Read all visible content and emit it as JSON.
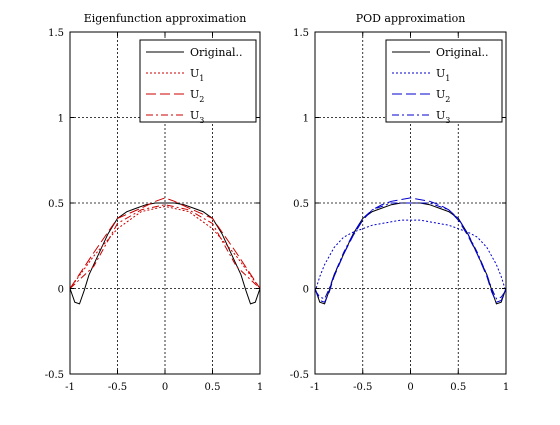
{
  "chart_data": [
    {
      "type": "line",
      "title": "Eigenfunction approximation",
      "xlabel": "",
      "ylabel": "",
      "xlim": [
        -1,
        1
      ],
      "ylim": [
        -0.5,
        1.5
      ],
      "x_ticks": [
        "-1",
        "-0.5",
        "0",
        "0.5",
        "1"
      ],
      "y_ticks": [
        "-0.5",
        "0",
        "0.5",
        "1",
        "1.5"
      ],
      "grid": true,
      "legend_position": "top-right",
      "legend_entries": [
        {
          "label": "Original..",
          "main": "Original..",
          "sub": ""
        },
        {
          "label": "U1",
          "main": "U",
          "sub": "1"
        },
        {
          "label": "U2",
          "main": "U",
          "sub": "2"
        },
        {
          "label": "U3",
          "main": "U",
          "sub": "3"
        }
      ],
      "series": [
        {
          "color": "#000000",
          "dash": "solid",
          "x": [
            -1,
            -0.95,
            -0.9,
            -0.85,
            -0.8,
            -0.7,
            -0.6,
            -0.5,
            -0.4,
            -0.3,
            -0.2,
            -0.1,
            0,
            0.1,
            0.2,
            0.3,
            0.4,
            0.5,
            0.6,
            0.7,
            0.8,
            0.85,
            0.9,
            0.95,
            1
          ],
          "y": [
            0,
            -0.08,
            -0.09,
            -0.01,
            0.08,
            0.2,
            0.32,
            0.41,
            0.45,
            0.47,
            0.49,
            0.5,
            0.5,
            0.5,
            0.49,
            0.47,
            0.45,
            0.41,
            0.32,
            0.2,
            0.08,
            -0.01,
            -0.09,
            -0.08,
            0
          ]
        },
        {
          "color": "#cc0000",
          "dash": "dotted",
          "x": [
            -1,
            -0.75,
            -0.5,
            -0.25,
            0,
            0.25,
            0.5,
            0.75,
            1
          ],
          "y": [
            0,
            0.19,
            0.35,
            0.45,
            0.48,
            0.45,
            0.35,
            0.19,
            0
          ]
        },
        {
          "color": "#cc0000",
          "dash": "long-dash",
          "x": [
            -1,
            -0.75,
            -0.5,
            -0.25,
            -0.1,
            0,
            0.1,
            0.25,
            0.5,
            0.75,
            1
          ],
          "y": [
            0,
            0.21,
            0.41,
            0.47,
            0.51,
            0.53,
            0.51,
            0.47,
            0.41,
            0.21,
            0
          ]
        },
        {
          "color": "#cc0000",
          "dash": "dash-dot",
          "x": [
            -1,
            -0.75,
            -0.5,
            -0.25,
            0,
            0.25,
            0.5,
            0.75,
            1
          ],
          "y": [
            0,
            0.13,
            0.38,
            0.46,
            0.49,
            0.46,
            0.38,
            0.13,
            0
          ]
        }
      ]
    },
    {
      "type": "line",
      "title": "POD approximation",
      "xlabel": "",
      "ylabel": "",
      "xlim": [
        -1,
        1
      ],
      "ylim": [
        -0.5,
        1.5
      ],
      "x_ticks": [
        "-1",
        "-0.5",
        "0",
        "0.5",
        "1"
      ],
      "y_ticks": [
        "-0.5",
        "0",
        "0.5",
        "1",
        "1.5"
      ],
      "grid": true,
      "legend_position": "top-right",
      "legend_entries": [
        {
          "label": "Original..",
          "main": "Original..",
          "sub": ""
        },
        {
          "label": "U1",
          "main": "U",
          "sub": "1"
        },
        {
          "label": "U2",
          "main": "U",
          "sub": "2"
        },
        {
          "label": "U3",
          "main": "U",
          "sub": "3"
        }
      ],
      "series": [
        {
          "color": "#000000",
          "dash": "solid",
          "x": [
            -1,
            -0.95,
            -0.9,
            -0.85,
            -0.8,
            -0.7,
            -0.6,
            -0.5,
            -0.4,
            -0.3,
            -0.2,
            -0.1,
            0,
            0.1,
            0.2,
            0.3,
            0.4,
            0.5,
            0.6,
            0.7,
            0.8,
            0.85,
            0.9,
            0.95,
            1
          ],
          "y": [
            0,
            -0.08,
            -0.09,
            -0.01,
            0.08,
            0.2,
            0.32,
            0.41,
            0.45,
            0.47,
            0.49,
            0.5,
            0.5,
            0.5,
            0.49,
            0.47,
            0.45,
            0.41,
            0.32,
            0.2,
            0.08,
            -0.01,
            -0.09,
            -0.08,
            0
          ]
        },
        {
          "color": "#0000cc",
          "dash": "dotted",
          "x": [
            -1,
            -0.95,
            -0.9,
            -0.8,
            -0.7,
            -0.6,
            -0.5,
            -0.4,
            -0.3,
            -0.2,
            -0.1,
            0,
            0.1,
            0.2,
            0.3,
            0.4,
            0.5,
            0.6,
            0.7,
            0.8,
            0.9,
            0.95,
            1
          ],
          "y": [
            -0.02,
            0.07,
            0.14,
            0.24,
            0.3,
            0.33,
            0.35,
            0.37,
            0.38,
            0.39,
            0.4,
            0.4,
            0.4,
            0.39,
            0.38,
            0.37,
            0.35,
            0.33,
            0.3,
            0.24,
            0.14,
            0.07,
            -0.02
          ]
        },
        {
          "color": "#0000cc",
          "dash": "long-dash",
          "x": [
            -1,
            -0.95,
            -0.9,
            -0.85,
            -0.8,
            -0.7,
            -0.6,
            -0.5,
            -0.4,
            -0.3,
            -0.2,
            -0.1,
            0,
            0.1,
            0.2,
            0.3,
            0.4,
            0.5,
            0.6,
            0.7,
            0.8,
            0.85,
            0.9,
            0.95,
            1
          ],
          "y": [
            0,
            -0.07,
            -0.08,
            -0.02,
            0.07,
            0.2,
            0.31,
            0.4,
            0.46,
            0.49,
            0.51,
            0.52,
            0.53,
            0.52,
            0.51,
            0.49,
            0.46,
            0.4,
            0.31,
            0.2,
            0.07,
            -0.02,
            -0.08,
            -0.07,
            0
          ]
        },
        {
          "color": "#0000cc",
          "dash": "dash-dot",
          "x": [
            -1,
            -0.95,
            -0.9,
            -0.85,
            -0.8,
            -0.7,
            -0.6,
            -0.5,
            -0.4,
            -0.3,
            -0.2,
            -0.1,
            0,
            0.1,
            0.2,
            0.3,
            0.4,
            0.5,
            0.6,
            0.7,
            0.8,
            0.85,
            0.9,
            0.95,
            1
          ],
          "y": [
            -0.01,
            -0.05,
            -0.06,
            0,
            0.08,
            0.21,
            0.32,
            0.41,
            0.46,
            0.48,
            0.5,
            0.5,
            0.5,
            0.5,
            0.5,
            0.48,
            0.46,
            0.41,
            0.32,
            0.21,
            0.08,
            0,
            -0.06,
            -0.05,
            -0.01
          ]
        }
      ]
    }
  ]
}
